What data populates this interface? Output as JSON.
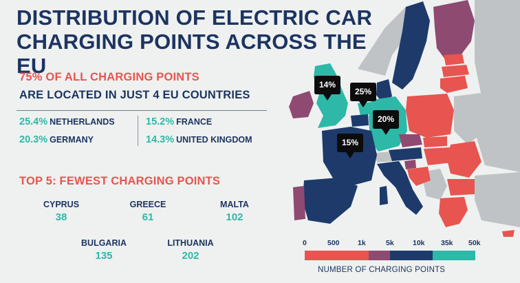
{
  "title": "DISTRIBUTION OF ELECTRIC CAR CHARGING POINTS ACROSS THE EU",
  "headline": {
    "highlight": "75% OF ALL CHARGING POINTS",
    "continuation": "ARE LOCATED IN JUST 4 EU COUNTRIES"
  },
  "top_shares": [
    {
      "pct": "25.4%",
      "country": "NETHERLANDS"
    },
    {
      "pct": "20.3%",
      "country": "GERMANY"
    },
    {
      "pct": "15.2%",
      "country": "FRANCE"
    },
    {
      "pct": "14.3%",
      "country": "UNITED KINGDOM"
    }
  ],
  "fewest_title": "TOP 5: FEWEST CHARGING POINTS",
  "fewest": [
    {
      "country": "CYPRUS",
      "value": "38"
    },
    {
      "country": "GREECE",
      "value": "61"
    },
    {
      "country": "MALTA",
      "value": "102"
    },
    {
      "country": "BULGARIA",
      "value": "135"
    },
    {
      "country": "LITHUANIA",
      "value": "202"
    }
  ],
  "map_callouts": [
    {
      "country": "United Kingdom",
      "label": "14%"
    },
    {
      "country": "Netherlands",
      "label": "25%"
    },
    {
      "country": "Germany",
      "label": "20%"
    },
    {
      "country": "France",
      "label": "15%"
    }
  ],
  "legend": {
    "title": "NUMBER OF CHARGING POINTS",
    "ticks": [
      "0",
      "500",
      "1k",
      "5k",
      "10k",
      "35k",
      "50k"
    ],
    "colors": [
      "#e8544f",
      "#e8544f",
      "#e8544f",
      "#8e4a70",
      "#1d3a6b",
      "#1d3a6b",
      "#2db8a8",
      "#2db8a8"
    ]
  },
  "colors": {
    "background": "#eef1f0",
    "navy": "#1d3461",
    "red": "#e8544f",
    "teal": "#2db8a8",
    "purple": "#8e4a70",
    "nonEU": "#bfc3c6"
  }
}
